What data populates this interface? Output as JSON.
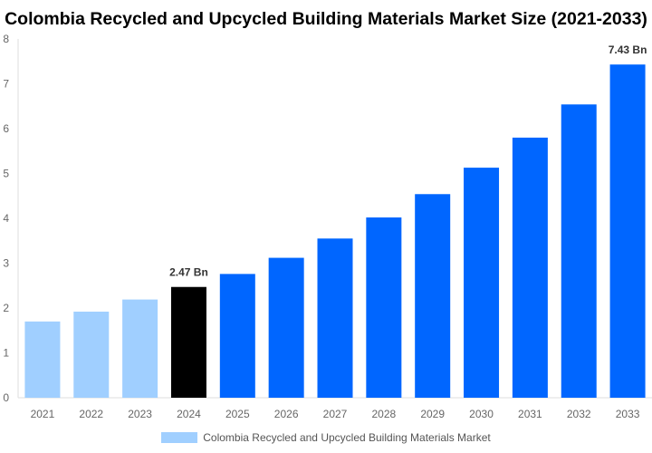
{
  "chart_data": {
    "type": "bar",
    "title": "Colombia Recycled and Upcycled Building Materials Market Size (2021-2033)",
    "categories": [
      "2021",
      "2022",
      "2023",
      "2024",
      "2025",
      "2026",
      "2027",
      "2028",
      "2029",
      "2030",
      "2031",
      "2032",
      "2033"
    ],
    "series": [
      {
        "name": "Colombia Recycled and Upcycled Building Materials Market",
        "values": [
          1.7,
          1.92,
          2.19,
          2.47,
          2.76,
          3.12,
          3.55,
          4.02,
          4.54,
          5.13,
          5.8,
          6.54,
          7.43
        ]
      }
    ],
    "data_labels": {
      "2024": "2.47 Bn",
      "2033": "7.43 Bn"
    },
    "ylim": [
      0,
      8
    ],
    "yticks": [
      0,
      1,
      2,
      3,
      4,
      5,
      6,
      7,
      8
    ],
    "grid": false,
    "legend": "bottom",
    "colors": {
      "historical": "#a0cfff",
      "base_year": "#000000",
      "forecast": "#0066ff"
    }
  }
}
